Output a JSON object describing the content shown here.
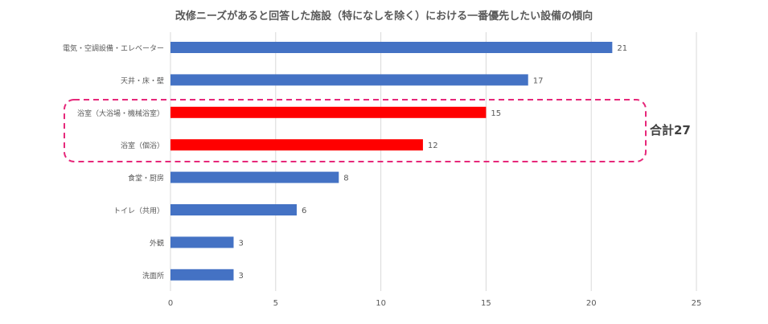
{
  "chart_data": {
    "type": "bar",
    "orientation": "horizontal",
    "title": "改修ニーズがあると回答した施設（特になしを除く）における一番優先したい設備の傾向",
    "categories": [
      "電気・空調設備・エレベーター",
      "天井・床・壁",
      "浴室（大浴場・機械浴室）",
      "浴室（個浴）",
      "食堂・厨房",
      "トイレ（共用）",
      "外観",
      "洗面所"
    ],
    "values": [
      21,
      17,
      15,
      12,
      8,
      6,
      3,
      3
    ],
    "highlight": [
      false,
      false,
      true,
      true,
      false,
      false,
      false,
      false
    ],
    "xlim": [
      0,
      25
    ],
    "xticks": [
      0,
      5,
      10,
      15,
      20,
      25
    ],
    "grid": true,
    "annotation": "合計27"
  },
  "colors": {
    "bar": "#4472C4",
    "highlight": "#FF0000",
    "box": "#E6287A",
    "grid": "#D9D9D9",
    "text": "#595959"
  }
}
